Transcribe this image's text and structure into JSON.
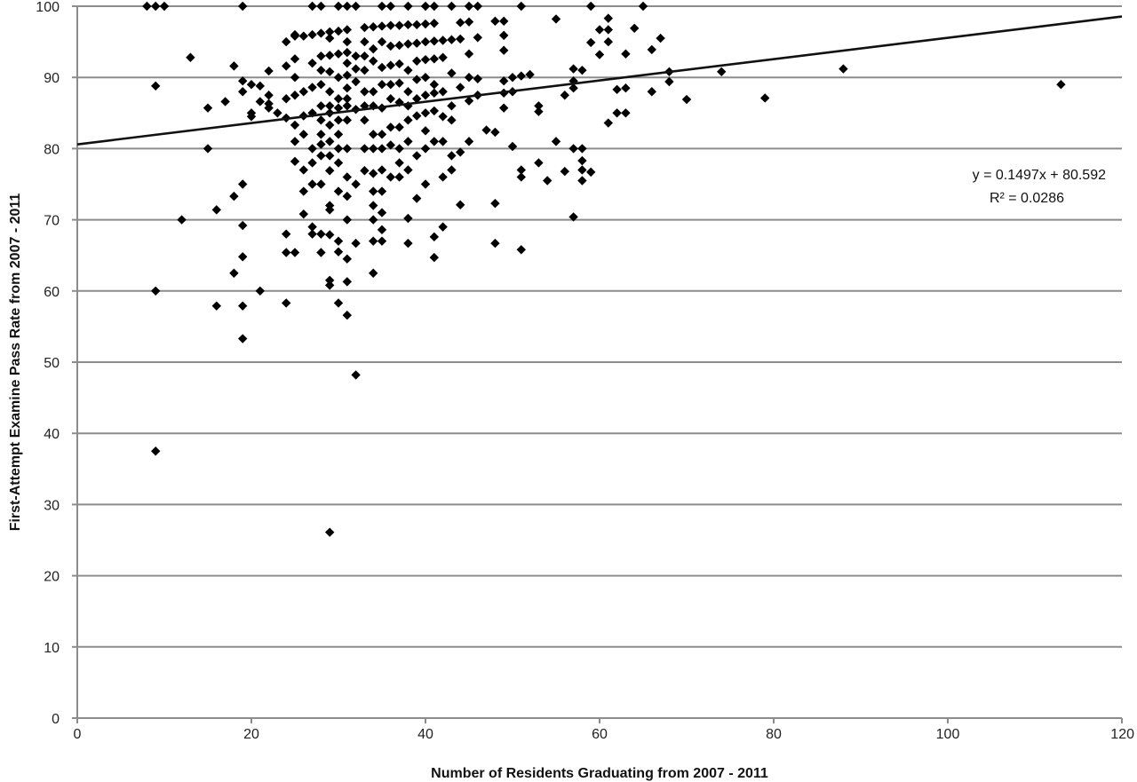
{
  "chart_data": {
    "type": "scatter",
    "xlabel": "Number of Residents Graduating from 2007 - 2011",
    "ylabel": "First-Attempt Examine Pass Rate from 2007 - 2011",
    "xlim": [
      0,
      120
    ],
    "ylim": [
      0,
      100
    ],
    "xticks": [
      "0",
      "20",
      "40",
      "60",
      "80",
      "100",
      "120"
    ],
    "yticks": [
      "0",
      "10",
      "20",
      "30",
      "40",
      "50",
      "60",
      "70",
      "80",
      "90",
      "100"
    ],
    "grid": "horizontal",
    "marker": "diamond",
    "marker_color": "#000000",
    "gridline_color": "#8c8c8c",
    "trendline": {
      "slope": 0.1497,
      "intercept": 80.592,
      "equation": "y = 0.1497x + 80.592",
      "r2_label": "R² = 0.0286"
    },
    "points": [
      [
        8,
        100
      ],
      [
        9,
        100
      ],
      [
        10,
        100
      ],
      [
        19,
        100
      ],
      [
        27,
        100
      ],
      [
        28,
        100
      ],
      [
        30,
        100
      ],
      [
        31,
        100
      ],
      [
        32,
        100
      ],
      [
        35,
        100
      ],
      [
        36,
        100
      ],
      [
        38,
        100
      ],
      [
        40,
        100
      ],
      [
        41,
        100
      ],
      [
        43,
        100
      ],
      [
        45,
        100
      ],
      [
        46,
        100
      ],
      [
        51,
        100
      ],
      [
        59,
        100
      ],
      [
        65,
        100
      ],
      [
        9,
        88.8
      ],
      [
        9,
        60
      ],
      [
        9,
        37.5
      ],
      [
        12,
        70
      ],
      [
        13,
        92.8
      ],
      [
        15,
        85.7
      ],
      [
        15,
        80
      ],
      [
        16,
        71.4
      ],
      [
        16,
        57.9
      ],
      [
        17,
        86.6
      ],
      [
        18,
        91.6
      ],
      [
        18,
        73.3
      ],
      [
        18,
        62.5
      ],
      [
        19,
        89.5
      ],
      [
        19,
        88
      ],
      [
        19,
        75
      ],
      [
        19,
        69.2
      ],
      [
        19,
        64.8
      ],
      [
        19,
        57.9
      ],
      [
        19,
        53.3
      ],
      [
        20,
        85
      ],
      [
        20,
        84.5
      ],
      [
        20,
        89
      ],
      [
        21,
        88.8
      ],
      [
        21,
        86.6
      ],
      [
        21,
        60
      ],
      [
        22,
        90.9
      ],
      [
        22,
        87.5
      ],
      [
        22,
        86.3
      ],
      [
        22,
        85.7
      ],
      [
        23,
        85
      ],
      [
        24,
        95
      ],
      [
        24,
        91.6
      ],
      [
        24,
        87
      ],
      [
        24,
        84.3
      ],
      [
        24,
        68
      ],
      [
        24,
        65.4
      ],
      [
        24,
        58.3
      ],
      [
        25,
        96
      ],
      [
        25,
        95.8
      ],
      [
        25,
        92.6
      ],
      [
        25,
        90
      ],
      [
        25,
        87.5
      ],
      [
        25,
        83.3
      ],
      [
        25,
        81
      ],
      [
        25,
        78.2
      ],
      [
        25,
        65.4
      ],
      [
        26,
        95.8
      ],
      [
        26,
        88
      ],
      [
        26,
        84.6
      ],
      [
        26,
        82
      ],
      [
        26,
        77
      ],
      [
        26,
        74
      ],
      [
        26,
        70.8
      ],
      [
        27,
        96
      ],
      [
        27,
        92
      ],
      [
        27,
        88.6
      ],
      [
        27,
        85
      ],
      [
        27,
        80
      ],
      [
        27,
        78
      ],
      [
        27,
        75
      ],
      [
        27,
        69
      ],
      [
        27,
        68
      ],
      [
        28,
        96.2
      ],
      [
        28,
        93
      ],
      [
        28,
        91
      ],
      [
        28,
        89
      ],
      [
        28,
        86
      ],
      [
        28,
        84
      ],
      [
        28,
        82
      ],
      [
        28,
        80.6
      ],
      [
        28,
        79
      ],
      [
        28,
        75
      ],
      [
        28,
        68
      ],
      [
        28,
        65.4
      ],
      [
        29,
        96.4
      ],
      [
        29,
        95.5
      ],
      [
        29,
        93.1
      ],
      [
        29,
        90.8
      ],
      [
        29,
        88
      ],
      [
        29,
        86
      ],
      [
        29,
        85
      ],
      [
        29,
        83.3
      ],
      [
        29,
        81
      ],
      [
        29,
        79
      ],
      [
        29,
        76.9
      ],
      [
        29,
        72
      ],
      [
        29,
        71.4
      ],
      [
        29,
        67.9
      ],
      [
        29,
        61.5
      ],
      [
        29,
        60.8
      ],
      [
        29,
        26.1
      ],
      [
        30,
        96.5
      ],
      [
        30,
        93.3
      ],
      [
        30,
        90
      ],
      [
        30,
        87
      ],
      [
        30,
        85.7
      ],
      [
        30,
        84
      ],
      [
        30,
        82
      ],
      [
        30,
        80
      ],
      [
        30,
        78
      ],
      [
        30,
        74
      ],
      [
        30,
        67
      ],
      [
        30,
        65.5
      ],
      [
        30,
        58.3
      ],
      [
        31,
        96.7
      ],
      [
        31,
        95
      ],
      [
        31,
        93.5
      ],
      [
        31,
        92
      ],
      [
        31,
        90.3
      ],
      [
        31,
        88.5
      ],
      [
        31,
        87
      ],
      [
        31,
        86
      ],
      [
        31,
        84
      ],
      [
        31,
        80
      ],
      [
        31,
        76
      ],
      [
        31,
        73.3
      ],
      [
        31,
        70
      ],
      [
        31,
        64.5
      ],
      [
        31,
        61.3
      ],
      [
        31,
        56.6
      ],
      [
        32,
        93
      ],
      [
        32,
        91.2
      ],
      [
        32,
        89.4
      ],
      [
        32,
        85.5
      ],
      [
        32,
        75
      ],
      [
        32,
        66.7
      ],
      [
        32,
        48.2
      ],
      [
        33,
        97
      ],
      [
        33,
        95
      ],
      [
        33,
        93
      ],
      [
        33,
        91
      ],
      [
        33,
        88
      ],
      [
        33,
        86
      ],
      [
        33,
        84
      ],
      [
        33,
        80
      ],
      [
        33,
        76.9
      ],
      [
        34,
        97.1
      ],
      [
        34,
        94
      ],
      [
        34,
        92.3
      ],
      [
        34,
        88
      ],
      [
        34,
        86
      ],
      [
        34,
        82
      ],
      [
        34,
        80
      ],
      [
        34,
        76.5
      ],
      [
        34,
        74
      ],
      [
        34,
        72
      ],
      [
        34,
        70
      ],
      [
        34,
        67
      ],
      [
        34,
        62.5
      ],
      [
        35,
        97.2
      ],
      [
        35,
        95
      ],
      [
        35,
        91.4
      ],
      [
        35,
        89
      ],
      [
        35,
        85.7
      ],
      [
        35,
        82
      ],
      [
        35,
        80
      ],
      [
        35,
        77
      ],
      [
        35,
        74
      ],
      [
        35,
        71
      ],
      [
        35,
        68.6
      ],
      [
        35,
        67
      ],
      [
        36,
        97.3
      ],
      [
        36,
        94.4
      ],
      [
        36,
        91.7
      ],
      [
        36,
        89
      ],
      [
        36,
        87
      ],
      [
        36,
        83
      ],
      [
        36,
        80.5
      ],
      [
        36,
        76
      ],
      [
        37,
        97.3
      ],
      [
        37,
        94.5
      ],
      [
        37,
        91.9
      ],
      [
        37,
        89.2
      ],
      [
        37,
        86.5
      ],
      [
        37,
        83
      ],
      [
        37,
        80
      ],
      [
        37,
        78
      ],
      [
        37,
        76
      ],
      [
        38,
        97.4
      ],
      [
        38,
        94.7
      ],
      [
        38,
        91
      ],
      [
        38,
        88
      ],
      [
        38,
        86
      ],
      [
        38,
        84
      ],
      [
        38,
        81
      ],
      [
        38,
        77
      ],
      [
        38,
        70.2
      ],
      [
        38,
        66.7
      ],
      [
        39,
        97.4
      ],
      [
        39,
        94.8
      ],
      [
        39,
        92.3
      ],
      [
        39,
        89.7
      ],
      [
        39,
        87
      ],
      [
        39,
        84.6
      ],
      [
        39,
        79
      ],
      [
        39,
        73
      ],
      [
        40,
        97.5
      ],
      [
        40,
        95
      ],
      [
        40,
        92.5
      ],
      [
        40,
        90
      ],
      [
        40,
        87.5
      ],
      [
        40,
        85
      ],
      [
        40,
        82.5
      ],
      [
        40,
        80
      ],
      [
        40,
        75
      ],
      [
        41,
        97.6
      ],
      [
        41,
        95.1
      ],
      [
        41,
        92.6
      ],
      [
        41,
        89
      ],
      [
        41,
        87.8
      ],
      [
        41,
        85.3
      ],
      [
        41,
        81
      ],
      [
        41,
        67.6
      ],
      [
        41,
        64.7
      ],
      [
        42,
        95.2
      ],
      [
        42,
        92.8
      ],
      [
        42,
        88
      ],
      [
        42,
        84.5
      ],
      [
        42,
        81
      ],
      [
        42,
        76
      ],
      [
        42,
        69
      ],
      [
        43,
        95.3
      ],
      [
        43,
        90.6
      ],
      [
        43,
        86
      ],
      [
        43,
        84
      ],
      [
        43,
        79
      ],
      [
        43,
        77
      ],
      [
        44,
        97.7
      ],
      [
        44,
        95.4
      ],
      [
        44,
        88.6
      ],
      [
        44,
        79.5
      ],
      [
        44,
        72.1
      ],
      [
        45,
        97.8
      ],
      [
        45,
        93.3
      ],
      [
        45,
        90
      ],
      [
        45,
        86.7
      ],
      [
        45,
        81
      ],
      [
        46,
        95.6
      ],
      [
        46,
        89.8
      ],
      [
        46,
        87.5
      ],
      [
        47,
        82.6
      ],
      [
        48,
        97.9
      ],
      [
        48,
        82.3
      ],
      [
        48,
        72.3
      ],
      [
        48,
        66.7
      ],
      [
        49,
        97.9
      ],
      [
        49,
        95.9
      ],
      [
        49,
        93.8
      ],
      [
        49,
        89.5
      ],
      [
        49,
        87.8
      ],
      [
        49,
        85.7
      ],
      [
        50,
        90
      ],
      [
        50,
        88
      ],
      [
        50,
        80.3
      ],
      [
        51,
        90.2
      ],
      [
        51,
        77
      ],
      [
        51,
        76
      ],
      [
        51,
        65.8
      ],
      [
        52,
        90.4
      ],
      [
        53,
        86
      ],
      [
        53,
        85.2
      ],
      [
        53,
        78
      ],
      [
        54,
        75.5
      ],
      [
        55,
        98.2
      ],
      [
        55,
        81
      ],
      [
        56,
        87.5
      ],
      [
        56,
        76.8
      ],
      [
        57,
        91.2
      ],
      [
        57,
        89.5
      ],
      [
        57,
        88.5
      ],
      [
        57,
        80
      ],
      [
        57,
        70.4
      ],
      [
        58,
        91
      ],
      [
        58,
        80
      ],
      [
        58,
        78.3
      ],
      [
        58,
        77
      ],
      [
        58,
        75.5
      ],
      [
        59,
        94.9
      ],
      [
        59,
        76.7
      ],
      [
        60,
        96.7
      ],
      [
        60,
        93.2
      ],
      [
        61,
        98.3
      ],
      [
        61,
        96.7
      ],
      [
        61,
        95
      ],
      [
        61,
        83.6
      ],
      [
        62,
        88.3
      ],
      [
        62,
        85
      ],
      [
        63,
        93.3
      ],
      [
        63,
        88.5
      ],
      [
        63,
        85
      ],
      [
        64,
        96.9
      ],
      [
        66,
        93.9
      ],
      [
        66,
        88
      ],
      [
        67,
        95.5
      ],
      [
        68,
        90.8
      ],
      [
        68,
        89.4
      ],
      [
        70,
        86.9
      ],
      [
        74,
        90.8
      ],
      [
        79,
        87.1
      ],
      [
        88,
        91.2
      ],
      [
        113,
        89
      ]
    ]
  }
}
